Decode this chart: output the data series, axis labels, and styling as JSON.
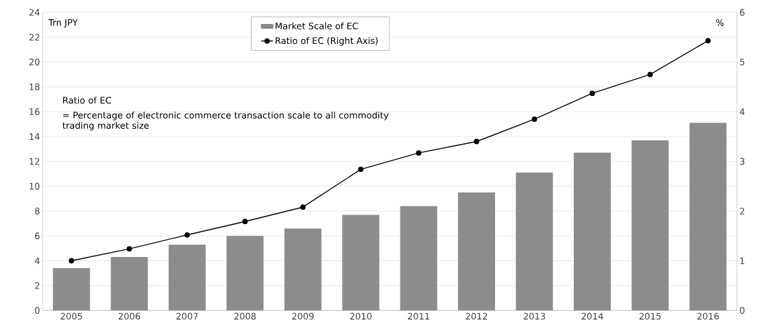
{
  "chart_data": {
    "type": "bar",
    "categories": [
      "2005",
      "2006",
      "2007",
      "2008",
      "2009",
      "2010",
      "2011",
      "2012",
      "2013",
      "2014",
      "2015",
      "2016"
    ],
    "ylabel": "Trn JPY",
    "y2label": "%",
    "ylim": [
      0,
      24
    ],
    "yticks": [
      0,
      2,
      4,
      6,
      8,
      10,
      12,
      14,
      16,
      18,
      20,
      22,
      24
    ],
    "y2lim": [
      0,
      6
    ],
    "y2ticks": [
      0,
      1,
      2,
      3,
      4,
      5,
      6
    ],
    "grid": "y",
    "legend": "top",
    "annotations": [
      "Ratio of EC",
      "= Percentage of electronic commerce transaction scale to all commodity trading market size"
    ],
    "series": [
      {
        "name": "Market Scale of EC",
        "color": "#8c8c8c",
        "values": [
          3.4,
          4.3,
          5.3,
          6.0,
          6.6,
          7.7,
          8.4,
          9.5,
          11.1,
          12.7,
          13.7,
          15.1
        ]
      },
      {
        "name": "Ratio of EC (Right Axis)",
        "type": "line",
        "axis": "y2",
        "color": "#000000",
        "marker": "circle",
        "values": [
          1.0,
          1.24,
          1.52,
          1.79,
          2.08,
          2.84,
          3.17,
          3.4,
          3.85,
          4.37,
          4.75,
          5.43
        ]
      }
    ]
  }
}
